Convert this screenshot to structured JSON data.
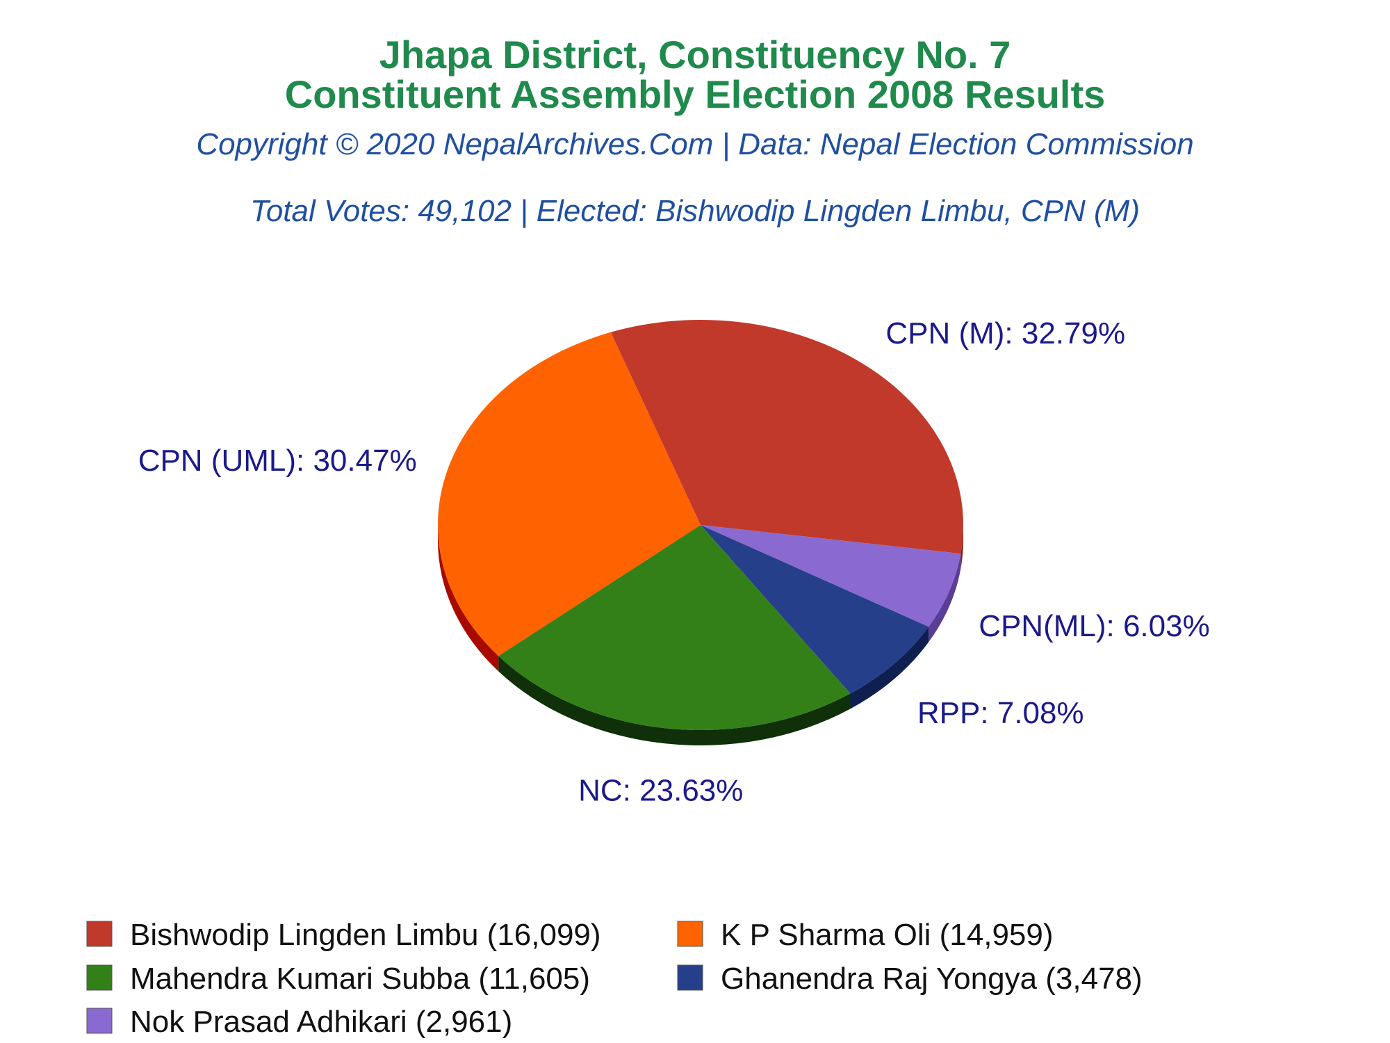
{
  "chart_data": {
    "type": "pie",
    "title": "Jhapa District, Constituency No. 7",
    "subtitle": "Constituent Assembly Election 2008 Results",
    "copyright": "Copyright © 2020 NepalArchives.Com | Data: Nepal Election Commission",
    "summary": "Total Votes: 49,102 | Elected: Bishwodip Lingden Limbu, CPN (M)",
    "slices": [
      {
        "party": "CPN (M)",
        "percent": 32.79,
        "candidate": "Bishwodip Lingden Limbu",
        "votes": 16099,
        "slice_label": "CPN (M): 32.79%",
        "legend_label": "Bishwodip Lingden Limbu (16,099)",
        "color": "#c0392b",
        "side_color": "#8a1f14"
      },
      {
        "party": "CPN(ML)",
        "percent": 6.03,
        "candidate": "Nok Prasad Adhikari",
        "votes": 2961,
        "slice_label": "CPN(ML): 6.03%",
        "legend_label": "Nok Prasad Adhikari (2,961)",
        "color": "#8a6ad0",
        "side_color": "#5a3e96"
      },
      {
        "party": "RPP",
        "percent": 7.08,
        "candidate": "Ghanendra Raj Yongya",
        "votes": 3478,
        "slice_label": "RPP: 7.08%",
        "legend_label": "Ghanendra Raj Yongya (3,478)",
        "color": "#253f8a",
        "side_color": "#0f1f50"
      },
      {
        "party": "NC",
        "percent": 23.63,
        "candidate": "Mahendra Kumari Subba",
        "votes": 11605,
        "slice_label": "NC: 23.63%",
        "legend_label": "Mahendra Kumari Subba (11,605)",
        "color": "#338019",
        "side_color": "#0f3008"
      },
      {
        "party": "CPN (UML)",
        "percent": 30.47,
        "candidate": "K P Sharma Oli",
        "votes": 14959,
        "slice_label": "CPN (UML): 30.47%",
        "legend_label": "K P Sharma Oli (14,959)",
        "color": "#ff6200",
        "side_color": "#a80a00"
      }
    ],
    "legend_order": [
      0,
      4,
      3,
      2,
      1
    ]
  }
}
